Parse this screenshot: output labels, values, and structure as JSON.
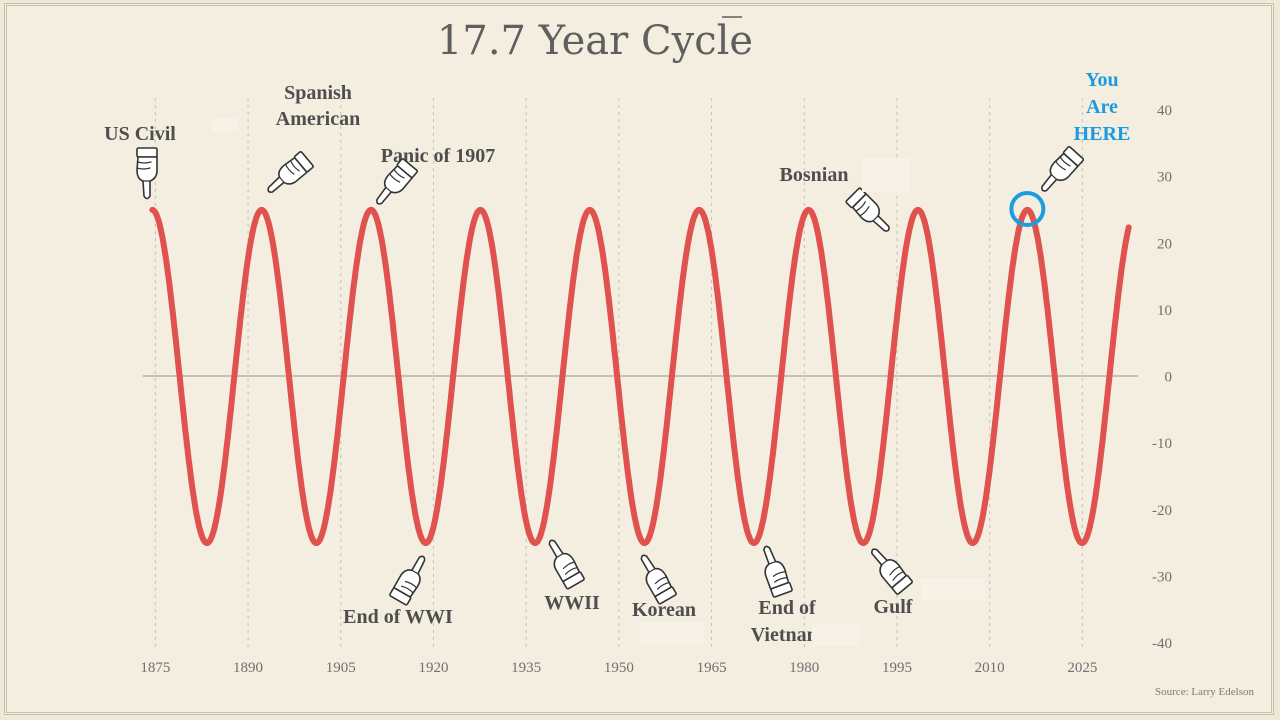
{
  "chart_data": {
    "type": "line",
    "title": "17.7 Year Cycle",
    "xlabel": "",
    "ylabel": "",
    "x_ticks": [
      "1875",
      "1890",
      "1905",
      "1920",
      "1935",
      "1950",
      "1965",
      "1980",
      "1995",
      "2010",
      "2025"
    ],
    "xlim": [
      1873,
      2034
    ],
    "y_ticks": [
      "40",
      "30",
      "20",
      "10",
      "0",
      "-10",
      "-20",
      "-30",
      "-40"
    ],
    "ylim": [
      -40,
      40
    ],
    "y_axis_side": "right",
    "grid": "vertical dashed gridlines at x ticks",
    "series": [
      {
        "color": "#e0524e",
        "function": "sine",
        "amplitude": 25,
        "period_years": 17.7,
        "x_start": 1874.5,
        "x_end": 2032.5,
        "peak_years": [
          1874.5,
          1892.2,
          1909.9,
          1927.6,
          1945.3,
          1963.0,
          1980.7,
          1998.4,
          2016.1
        ],
        "trough_years": [
          1883.35,
          1901.05,
          1918.75,
          1936.45,
          1954.15,
          1971.85,
          1989.55,
          2007.25,
          2024.95
        ]
      }
    ],
    "annotations": [
      {
        "lines": [
          "US Civil"
        ],
        "year": 1874.5,
        "direction": "down-to-peak"
      },
      {
        "lines": [
          "Spanish",
          "American"
        ],
        "year": 1892.2,
        "direction": "down-to-peak"
      },
      {
        "lines": [
          "Panic of 1907"
        ],
        "year": 1909.9,
        "direction": "down-to-peak"
      },
      {
        "lines": [
          "Bosnian"
        ],
        "year": 1993,
        "direction": "down-right"
      },
      {
        "lines": [
          "You",
          "Are",
          "HERE"
        ],
        "year": 2016.1,
        "direction": "down-to-peak",
        "highlight": true,
        "color": "#1d9be0"
      },
      {
        "lines": [
          "End of WWI"
        ],
        "year": 1918.75,
        "direction": "up-to-trough"
      },
      {
        "lines": [
          "WWII"
        ],
        "year": 1938,
        "direction": "up-left"
      },
      {
        "lines": [
          "Korean"
        ],
        "year": 1952,
        "direction": "up-left"
      },
      {
        "lines": [
          "End of",
          "Vietnam"
        ],
        "year": 1971,
        "direction": "up-left"
      },
      {
        "lines": [
          "Gulf"
        ],
        "year": 1990,
        "direction": "up-left"
      }
    ],
    "source": "Source: Larry Edelson"
  }
}
